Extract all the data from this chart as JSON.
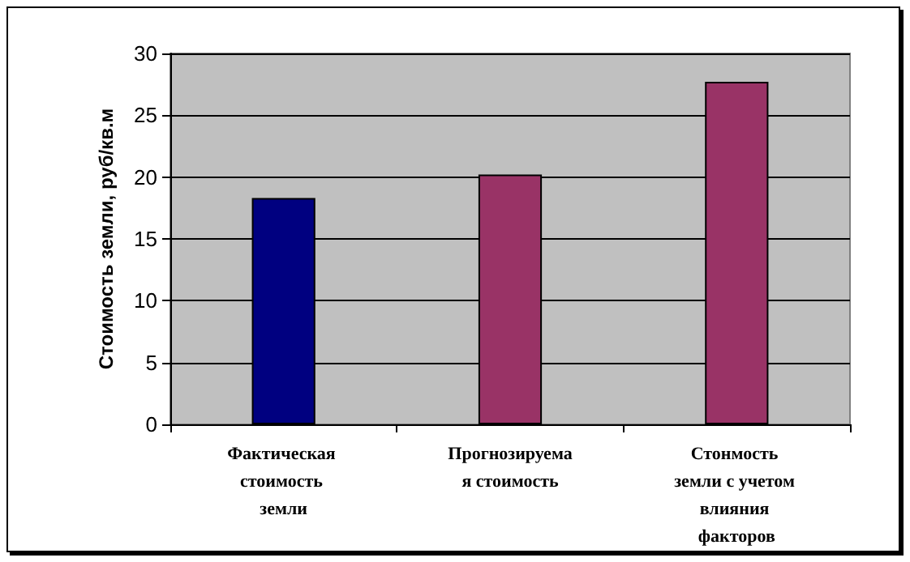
{
  "chart_data": {
    "type": "bar",
    "ylabel": "Стоимость земли, руб/кв.м",
    "categories": [
      "Фактическая стоимость земли",
      "Прогнозируемая стоимость",
      "Стонмость земли с учетом влияния факторов"
    ],
    "values": [
      18.3,
      20.2,
      27.7
    ],
    "colors": [
      "#000080",
      "#993366",
      "#993366"
    ],
    "ylim": [
      0,
      30
    ],
    "yticks": [
      0,
      5,
      10,
      15,
      20,
      25,
      30
    ],
    "grid": "y"
  }
}
